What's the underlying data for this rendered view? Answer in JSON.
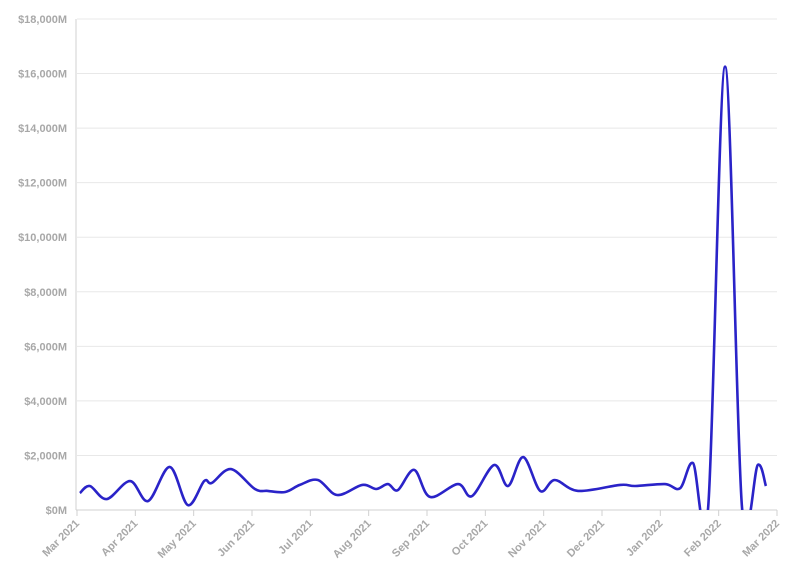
{
  "chart_data": {
    "type": "line",
    "x": [
      0.05,
      0.22,
      0.51,
      0.91,
      1.22,
      1.59,
      1.9,
      2.18,
      2.31,
      2.64,
      3.05,
      3.27,
      3.57,
      3.82,
      4.13,
      4.46,
      4.89,
      5.13,
      5.33,
      5.5,
      5.78,
      6.05,
      6.53,
      6.77,
      7.15,
      7.39,
      7.65,
      7.94,
      8.19,
      8.59,
      9.31,
      9.57,
      10.08,
      10.34,
      10.56,
      10.82,
      11.11,
      11.4,
      11.67,
      11.81
    ],
    "values": [
      620,
      880,
      400,
      1060,
      330,
      1580,
      180,
      1060,
      990,
      1500,
      770,
      700,
      660,
      920,
      1100,
      550,
      920,
      770,
      950,
      730,
      1470,
      480,
      950,
      510,
      1650,
      880,
      1940,
      700,
      1100,
      700,
      920,
      880,
      950,
      800,
      1720,
      100,
      16250,
      100,
      1650,
      880
    ],
    "color": "#2a23c8",
    "xlim": [
      0,
      12
    ],
    "xticks": [
      {
        "value": 0,
        "label": "Mar 2021"
      },
      {
        "value": 1,
        "label": "Apr 2021"
      },
      {
        "value": 2,
        "label": "May 2021"
      },
      {
        "value": 3,
        "label": "Jun 2021"
      },
      {
        "value": 4,
        "label": "Jul 2021"
      },
      {
        "value": 5,
        "label": "Aug 2021"
      },
      {
        "value": 6,
        "label": "Sep 2021"
      },
      {
        "value": 7,
        "label": "Oct 2021"
      },
      {
        "value": 8,
        "label": "Nov 2021"
      },
      {
        "value": 9,
        "label": "Dec 2021"
      },
      {
        "value": 10,
        "label": "Jan 2022"
      },
      {
        "value": 11,
        "label": "Feb 2022"
      },
      {
        "value": 12,
        "label": "Mar 2022"
      }
    ],
    "ylim": [
      0,
      18000
    ],
    "yticks": [
      {
        "value": 0,
        "label": "$0M"
      },
      {
        "value": 2000,
        "label": "$2,000M"
      },
      {
        "value": 4000,
        "label": "$4,000M"
      },
      {
        "value": 6000,
        "label": "$6,000M"
      },
      {
        "value": 8000,
        "label": "$8,000M"
      },
      {
        "value": 10000,
        "label": "$10,000M"
      },
      {
        "value": 12000,
        "label": "$12,000M"
      },
      {
        "value": 14000,
        "label": "$14,000M"
      },
      {
        "value": 16000,
        "label": "$16,000M"
      },
      {
        "value": 18000,
        "label": "$18,000M"
      }
    ],
    "grid": true
  }
}
